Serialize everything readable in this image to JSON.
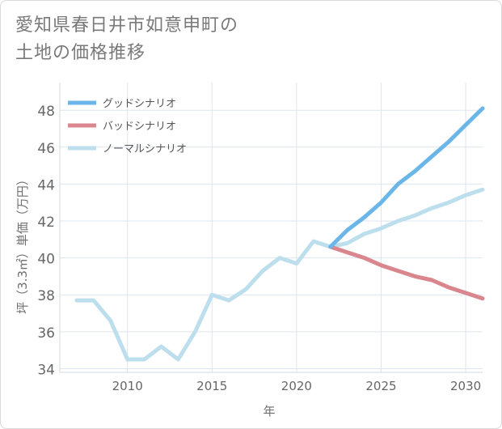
{
  "header": {
    "title_line1": "愛知県春日井市如意申町の",
    "title_line2": "土地の価格推移"
  },
  "chart_data": {
    "type": "line",
    "title": "愛知県春日井市如意申町の土地の価格推移",
    "xlabel": "年",
    "ylabel": "坪（3.3㎡）単価（万円）",
    "xlim": [
      2006,
      2031
    ],
    "ylim": [
      33.8,
      49.5
    ],
    "xticks": [
      2010,
      2015,
      2020,
      2025,
      2030
    ],
    "yticks": [
      34,
      36,
      38,
      40,
      42,
      44,
      46,
      48
    ],
    "grid": true,
    "legend_position": "top-left",
    "series": [
      {
        "name": "グッドシナリオ",
        "color": "#6bb6e8",
        "x": [
          2022,
          2023,
          2024,
          2025,
          2026,
          2027,
          2028,
          2029,
          2030,
          2031
        ],
        "values": [
          40.6,
          41.5,
          42.2,
          43.0,
          44.0,
          44.7,
          45.5,
          46.3,
          47.2,
          48.1
        ]
      },
      {
        "name": "バッドシナリオ",
        "color": "#d9868e",
        "x": [
          2022,
          2023,
          2024,
          2025,
          2026,
          2027,
          2028,
          2029,
          2030,
          2031
        ],
        "values": [
          40.6,
          40.3,
          40.0,
          39.6,
          39.3,
          39.0,
          38.8,
          38.4,
          38.1,
          37.8
        ]
      },
      {
        "name": "ノーマルシナリオ",
        "color": "#bcdeed",
        "x": [
          2007,
          2008,
          2009,
          2010,
          2011,
          2012,
          2013,
          2014,
          2015,
          2016,
          2017,
          2018,
          2019,
          2020,
          2021,
          2022,
          2023,
          2024,
          2025,
          2026,
          2027,
          2028,
          2029,
          2030,
          2031
        ],
        "values": [
          37.7,
          37.7,
          36.6,
          34.5,
          34.5,
          35.2,
          34.5,
          36.0,
          38.0,
          37.7,
          38.3,
          39.3,
          40.0,
          39.7,
          40.9,
          40.6,
          40.8,
          41.3,
          41.6,
          42.0,
          42.3,
          42.7,
          43.0,
          43.4,
          43.7
        ]
      }
    ]
  }
}
